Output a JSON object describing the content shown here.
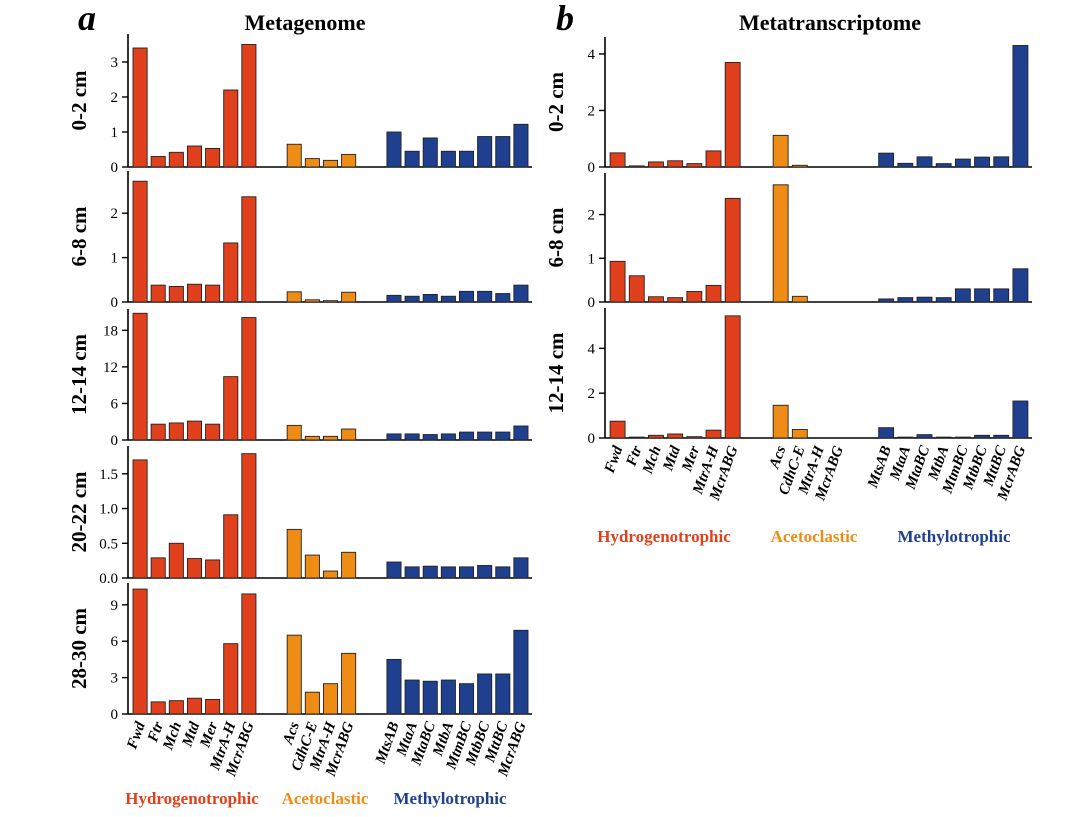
{
  "colors": {
    "Hydrogenotrophic": "#e0401c",
    "Acetoclastic": "#ee8c16",
    "Methylotrophic": "#1f3f8f"
  },
  "chart_data": [
    {
      "panel": "a",
      "title": "Metagenome",
      "type": "bar",
      "groups": [
        {
          "name": "Hydrogenotrophic",
          "categories": [
            "Fwd",
            "Ftr",
            "Mch",
            "Mtd",
            "Mer",
            "MtrA-H",
            "McrABG"
          ]
        },
        {
          "name": "Acetoclastic",
          "categories": [
            "Acs",
            "CdhC-E",
            "MtrA-H",
            "McrABG"
          ]
        },
        {
          "name": "Methylotrophic",
          "categories": [
            "MtsAB",
            "MtaA",
            "MtaBC",
            "MtbA",
            "MtmBC",
            "MtbBC",
            "MttBC",
            "McrABG"
          ]
        }
      ],
      "rows": [
        {
          "label": "0-2 cm",
          "ylim": [
            0,
            3.8
          ],
          "ticks": [
            "0",
            "1",
            "2",
            "3"
          ],
          "values": [
            [
              3.4,
              0.3,
              0.42,
              0.6,
              0.53,
              2.2,
              3.5
            ],
            [
              0.65,
              0.24,
              0.19,
              0.36
            ],
            [
              1.0,
              0.45,
              0.83,
              0.45,
              0.45,
              0.87,
              0.87,
              1.22
            ]
          ]
        },
        {
          "label": "6-8 cm",
          "ylim": [
            0,
            2.95
          ],
          "ticks": [
            "0",
            "1",
            "2"
          ],
          "values": [
            [
              2.72,
              0.38,
              0.35,
              0.4,
              0.38,
              1.33,
              2.37
            ],
            [
              0.23,
              0.05,
              0.03,
              0.22
            ],
            [
              0.15,
              0.13,
              0.17,
              0.13,
              0.24,
              0.24,
              0.19,
              0.38
            ]
          ]
        },
        {
          "label": "12-14 cm",
          "ylim": [
            0,
            21.5
          ],
          "ticks": [
            "0",
            "6",
            "12",
            "18"
          ],
          "values": [
            [
              20.8,
              2.6,
              2.8,
              3.1,
              2.6,
              10.4,
              20.1
            ],
            [
              2.4,
              0.6,
              0.6,
              1.8
            ],
            [
              1.0,
              1.0,
              0.9,
              1.0,
              1.3,
              1.3,
              1.3,
              2.3
            ]
          ]
        },
        {
          "label": "20-22 cm",
          "ylim": [
            0,
            1.9
          ],
          "ticks": [
            "0.0",
            "0.5",
            "1.0",
            "1.5"
          ],
          "values": [
            [
              1.7,
              0.29,
              0.5,
              0.28,
              0.26,
              0.91,
              1.79
            ],
            [
              0.7,
              0.33,
              0.1,
              0.37
            ],
            [
              0.23,
              0.16,
              0.17,
              0.16,
              0.16,
              0.18,
              0.16,
              0.29
            ]
          ]
        },
        {
          "label": "28-30 cm",
          "ylim": [
            0,
            10.8
          ],
          "ticks": [
            "0",
            "3",
            "6",
            "9"
          ],
          "values": [
            [
              10.3,
              1.0,
              1.1,
              1.3,
              1.2,
              5.8,
              9.9
            ],
            [
              6.5,
              1.8,
              2.5,
              5.0
            ],
            [
              4.5,
              2.8,
              2.7,
              2.8,
              2.5,
              3.3,
              3.3,
              6.9
            ]
          ]
        }
      ]
    },
    {
      "panel": "b",
      "title": "Metatranscriptome",
      "type": "bar",
      "groups": [
        {
          "name": "Hydrogenotrophic",
          "categories": [
            "Fwd",
            "Ftr",
            "Mch",
            "Mtd",
            "Mer",
            "MtrA-H",
            "McrABG"
          ]
        },
        {
          "name": "Acetoclastic",
          "categories": [
            "Acs",
            "CdhC-E",
            "MtrA-H",
            "McrABG"
          ]
        },
        {
          "name": "Methylotrophic",
          "categories": [
            "MtsAB",
            "MtaA",
            "MtaBC",
            "MtbA",
            "MtmBC",
            "MtbBC",
            "MttBC",
            "McrABG"
          ]
        }
      ],
      "rows": [
        {
          "label": "0-2 cm",
          "ylim": [
            0,
            4.6
          ],
          "ticks": [
            "0",
            "2",
            "4"
          ],
          "values": [
            [
              0.5,
              0.04,
              0.18,
              0.22,
              0.12,
              0.57,
              3.7
            ],
            [
              1.12,
              0.06,
              0.0,
              0.0
            ],
            [
              0.49,
              0.13,
              0.36,
              0.12,
              0.28,
              0.35,
              0.36,
              4.3
            ]
          ]
        },
        {
          "label": "6-8 cm",
          "ylim": [
            0,
            2.95
          ],
          "ticks": [
            "0",
            "1",
            "2"
          ],
          "values": [
            [
              0.93,
              0.6,
              0.12,
              0.1,
              0.24,
              0.38,
              2.37
            ],
            [
              2.68,
              0.13,
              0.0,
              0.0
            ],
            [
              0.07,
              0.1,
              0.11,
              0.1,
              0.3,
              0.3,
              0.3,
              0.76
            ]
          ]
        },
        {
          "label": "12-14 cm",
          "ylim": [
            0,
            5.8
          ],
          "ticks": [
            "0",
            "2",
            "4"
          ],
          "values": [
            [
              0.75,
              0.04,
              0.12,
              0.18,
              0.06,
              0.35,
              5.45
            ],
            [
              1.46,
              0.38,
              0.0,
              0.0
            ],
            [
              0.46,
              0.04,
              0.15,
              0.04,
              0.04,
              0.12,
              0.12,
              1.65
            ]
          ]
        }
      ]
    }
  ]
}
